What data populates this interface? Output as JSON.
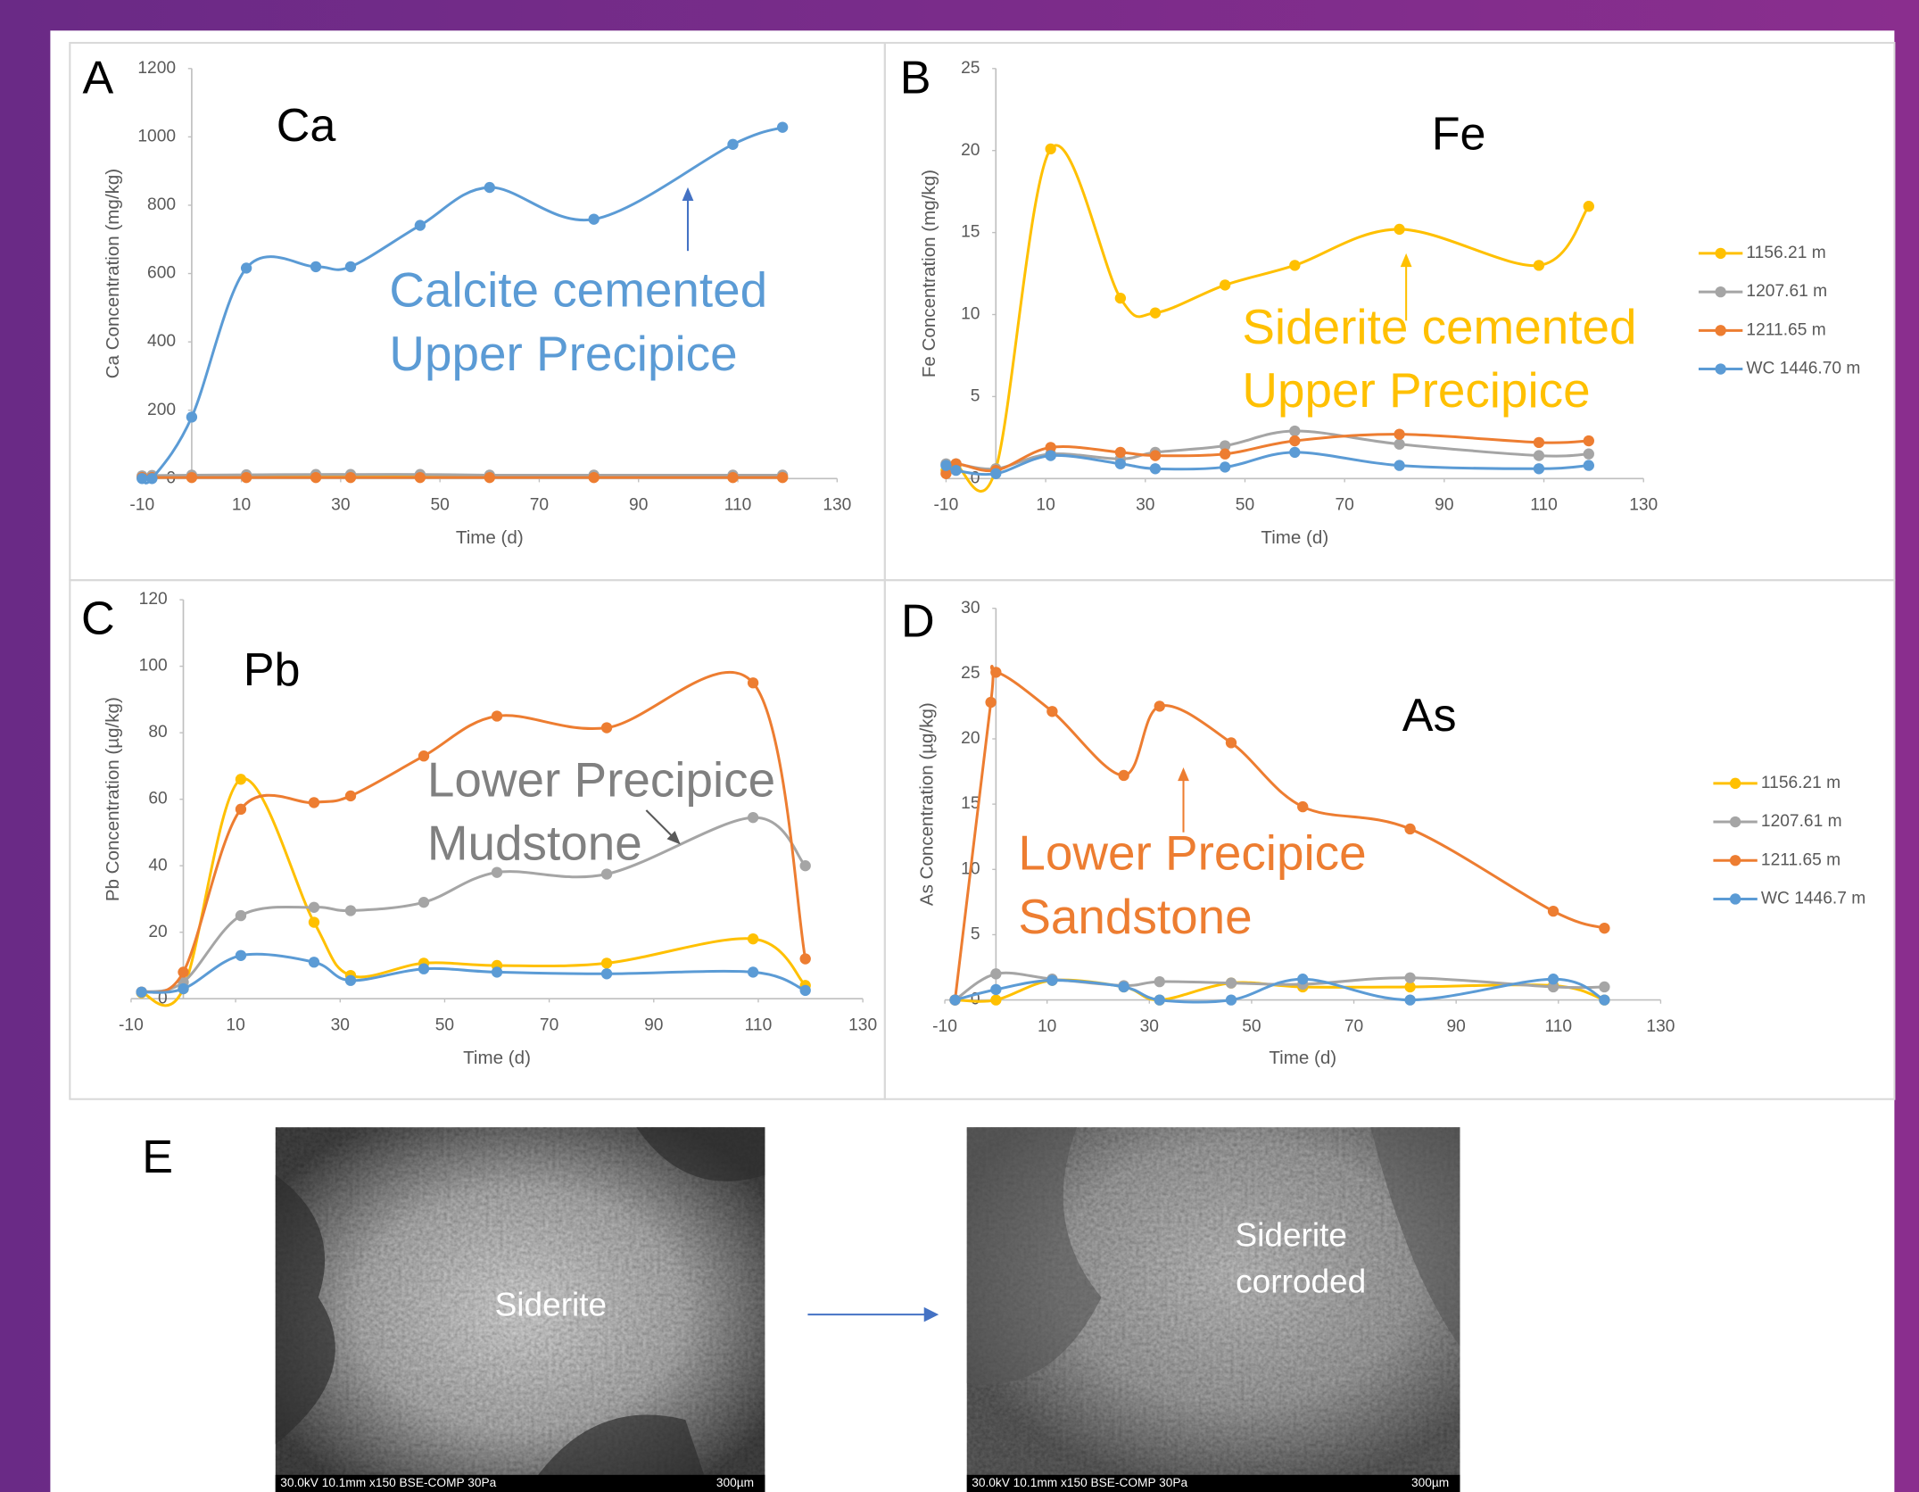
{
  "chart_data": [
    {
      "type": "line",
      "panel": "A",
      "title": "Ca",
      "x_label": "Time (d)",
      "y_label": "Ca Concentration (mg/kg)",
      "x": [
        -10,
        -8,
        0,
        11,
        25,
        32,
        46,
        60,
        81,
        109,
        119
      ],
      "xlim": [
        -10,
        130
      ],
      "xticks": [
        -10,
        10,
        30,
        50,
        70,
        90,
        110,
        130
      ],
      "ylim": [
        0,
        1200
      ],
      "yticks": [
        0,
        200,
        400,
        600,
        800,
        1000,
        1200
      ],
      "series": [
        {
          "color": "#ffc000",
          "values": [
            2,
            3,
            4,
            5,
            5,
            5,
            5,
            4,
            4,
            4,
            4
          ]
        },
        {
          "color": "#a5a5a5",
          "values": [
            8,
            9,
            10,
            11,
            12,
            12,
            12,
            10,
            10,
            10,
            10
          ]
        },
        {
          "color": "#ed7d31",
          "values": [
            3,
            3,
            3,
            3,
            3,
            3,
            3,
            3,
            3,
            3,
            3
          ]
        },
        {
          "color": "#5b9bd5",
          "values": [
            0,
            0,
            180,
            616,
            620,
            620,
            741,
            852,
            759,
            978,
            1028
          ]
        }
      ],
      "annotations": [
        {
          "text": [
            "Calcite cemented",
            "Upper Precipice"
          ],
          "color": "#5b9bd5"
        }
      ]
    },
    {
      "type": "line",
      "panel": "B",
      "title": "Fe",
      "x_label": "Time (d)",
      "y_label": "Fe Concentration (mg/kg)",
      "x": [
        -10,
        -8,
        0,
        11,
        25,
        32,
        46,
        60,
        81,
        109,
        119
      ],
      "xlim": [
        -10,
        130
      ],
      "xticks": [
        -10,
        10,
        30,
        50,
        70,
        90,
        110,
        130
      ],
      "ylim": [
        0,
        25
      ],
      "yticks": [
        0,
        5,
        10,
        15,
        20,
        25
      ],
      "legend": "right",
      "series": [
        {
          "name": "1156.21 m",
          "color": "#ffc000",
          "values": [
            0.5,
            0.8,
            0.6,
            20.1,
            11.0,
            10.1,
            11.8,
            13.0,
            15.2,
            13.0,
            16.6
          ]
        },
        {
          "name": "1207.61 m",
          "color": "#a5a5a5",
          "values": [
            0.9,
            0.9,
            0.6,
            1.5,
            1.2,
            1.6,
            2.0,
            2.9,
            2.1,
            1.4,
            1.5
          ]
        },
        {
          "name": "1211.65 m",
          "color": "#ed7d31",
          "values": [
            0.3,
            0.9,
            0.5,
            1.9,
            1.6,
            1.4,
            1.5,
            2.3,
            2.7,
            2.2,
            2.3
          ]
        },
        {
          "name": "WC 1446.70 m",
          "color": "#5b9bd5",
          "values": [
            0.8,
            0.5,
            0.3,
            1.4,
            0.9,
            0.6,
            0.7,
            1.6,
            0.8,
            0.6,
            0.8
          ]
        }
      ],
      "annotations": [
        {
          "text": [
            "Siderite cemented",
            "Upper Precipice"
          ],
          "color": "#ffc000"
        }
      ]
    },
    {
      "type": "line",
      "panel": "C",
      "title": "Pb",
      "x_label": "Time (d)",
      "y_label": "Pb Concentration (µg/kg)",
      "x": [
        -8,
        0,
        11,
        25,
        32,
        46,
        60,
        81,
        109,
        119
      ],
      "xlim": [
        -10,
        130
      ],
      "xticks": [
        -10,
        10,
        30,
        50,
        70,
        90,
        110,
        130
      ],
      "ylim": [
        0,
        120
      ],
      "yticks": [
        0,
        20,
        40,
        60,
        80,
        100,
        120
      ],
      "series": [
        {
          "color": "#ffc000",
          "values": [
            1.8,
            3,
            66,
            23,
            7,
            10.7,
            10,
            10.7,
            18,
            4
          ]
        },
        {
          "color": "#a5a5a5",
          "values": [
            2,
            5,
            25,
            27.5,
            26.5,
            29,
            38,
            37.5,
            54.5,
            40
          ]
        },
        {
          "color": "#ed7d31",
          "values": [
            2,
            8,
            57,
            59,
            61,
            73,
            85,
            81.5,
            95,
            12
          ]
        },
        {
          "color": "#5b9bd5",
          "values": [
            2,
            3,
            13,
            11,
            5.5,
            9,
            8,
            7.5,
            8,
            2.5
          ]
        }
      ],
      "annotations": [
        {
          "text": [
            "Lower Precipice",
            "Mudstone"
          ],
          "color": "#808080"
        }
      ]
    },
    {
      "type": "line",
      "panel": "D",
      "title": "As",
      "x_label": "Time (d)",
      "y_label": "As Concentration (µg/kg)",
      "x": [
        -8,
        0,
        11,
        25,
        32,
        46,
        60,
        81,
        109,
        119
      ],
      "xlim": [
        -10,
        130
      ],
      "xticks": [
        -10,
        10,
        30,
        50,
        70,
        90,
        110,
        130
      ],
      "ylim": [
        0,
        30
      ],
      "yticks": [
        0,
        5,
        10,
        15,
        20,
        25,
        30
      ],
      "legend": "right",
      "series": [
        {
          "name": "1156.21 m",
          "color": "#ffc000",
          "values": [
            0,
            0,
            1.5,
            1.0,
            0,
            1.3,
            1.0,
            1.0,
            1.1,
            0
          ]
        },
        {
          "name": "1207.61 m",
          "color": "#a5a5a5",
          "values": [
            0,
            2,
            1.6,
            1.1,
            1.4,
            1.3,
            1.2,
            1.7,
            1.0,
            1.0
          ]
        },
        {
          "name": "1211.65 m",
          "color": "#ed7d31",
          "x": [
            -8,
            -1,
            0,
            11,
            25,
            32,
            46,
            60,
            81,
            109,
            119
          ],
          "values": [
            0,
            22.8,
            25.1,
            22.1,
            17.2,
            22.5,
            19.7,
            14.8,
            13.1,
            6.8,
            5.5
          ]
        },
        {
          "name": "WC 1446.7 m",
          "color": "#5b9bd5",
          "values": [
            0,
            0.8,
            1.5,
            1.0,
            0,
            0,
            1.6,
            0,
            1.6,
            0
          ]
        }
      ],
      "annotations": [
        {
          "text": [
            "Lower Precipice",
            "Sandstone"
          ],
          "color": "#ed7d31"
        }
      ]
    }
  ],
  "panel_e": {
    "label": "E",
    "images": [
      {
        "labels": [
          "Siderite"
        ],
        "caption": "30.0kV 10.1mm x150 BSE-COMP 30Pa",
        "scale": "300µm"
      },
      {
        "labels": [
          "Siderite",
          "corroded"
        ],
        "caption": "30.0kV 10.1mm x150 BSE-COMP 30Pa",
        "scale": "300µm"
      }
    ]
  }
}
